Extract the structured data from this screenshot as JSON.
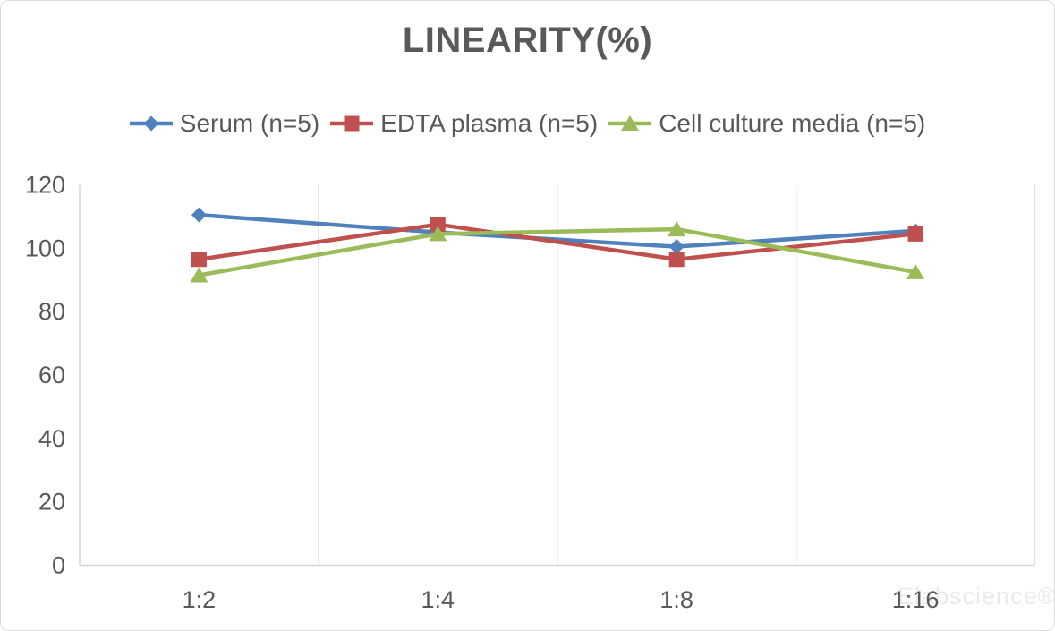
{
  "watermark": "Elabscience®",
  "chart_data": {
    "type": "line",
    "title": "LINEARITY(%)",
    "categories": [
      "1:2",
      "1:4",
      "1:8",
      "1:16"
    ],
    "series": [
      {
        "name": "Serum (n=5)",
        "color": "#4F81BD",
        "marker": "diamond",
        "values": [
          110.5,
          105.0,
          100.5,
          105.5
        ]
      },
      {
        "name": "EDTA plasma (n=5)",
        "color": "#C0504D",
        "marker": "square",
        "values": [
          96.5,
          107.5,
          96.5,
          104.5
        ]
      },
      {
        "name": "Cell culture media (n=5)",
        "color": "#9BBB59",
        "marker": "triangle",
        "values": [
          91.5,
          104.5,
          106.0,
          92.5
        ]
      }
    ],
    "xlabel": "",
    "ylabel": "",
    "ylim": [
      0,
      120
    ],
    "yticks": [
      0,
      20,
      40,
      60,
      80,
      100,
      120
    ],
    "grid": "vertical-between-categories-only",
    "legend_position": "top",
    "text_color": "#595959",
    "gridline_color": "#E2E2E2",
    "axis_color": "#D6D6D6"
  }
}
